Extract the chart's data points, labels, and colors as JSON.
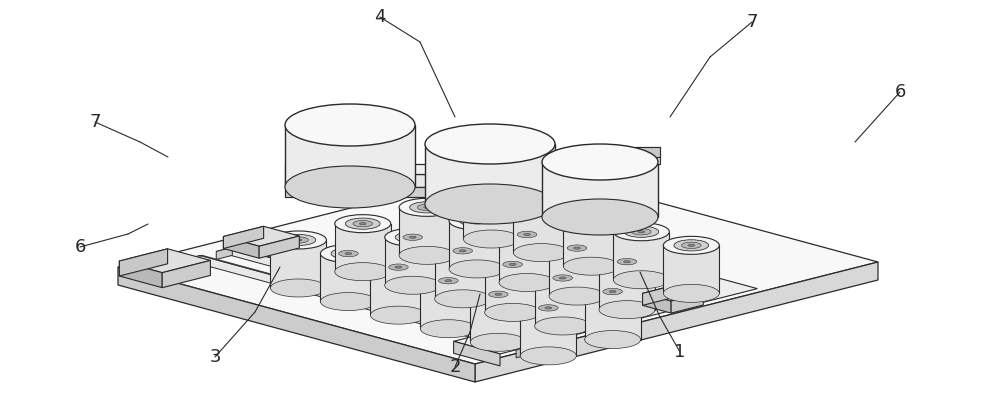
{
  "background_color": "#ffffff",
  "line_color": "#2a2a2a",
  "figure_width": 10.0,
  "figure_height": 4.12,
  "dpi": 100,
  "label_fontsize": 13
}
